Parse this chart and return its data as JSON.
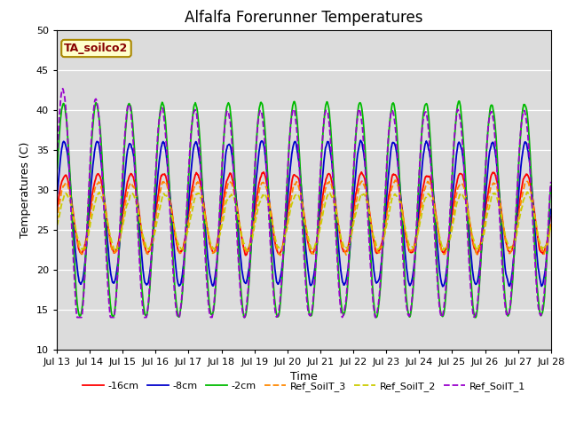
{
  "title": "Alfalfa Forerunner Temperatures",
  "xlabel": "Time",
  "ylabel": "Temperatures (C)",
  "ylim": [
    10,
    50
  ],
  "xlim": [
    0,
    360
  ],
  "background_color": "#dcdcdc",
  "legend_label": "TA_soilco2",
  "series": {
    "-16cm": {
      "color": "#ff0000",
      "linestyle": "-"
    },
    "-8cm": {
      "color": "#0000cc",
      "linestyle": "-"
    },
    "-2cm": {
      "color": "#00bb00",
      "linestyle": "-"
    },
    "Ref_SoilT_3": {
      "color": "#ff8800",
      "linestyle": "--"
    },
    "Ref_SoilT_2": {
      "color": "#cccc00",
      "linestyle": "--"
    },
    "Ref_SoilT_1": {
      "color": "#9900cc",
      "linestyle": "--"
    }
  },
  "xtick_positions": [
    0,
    24,
    48,
    72,
    96,
    120,
    144,
    168,
    192,
    216,
    240,
    264,
    288,
    312,
    336,
    360
  ],
  "xtick_labels": [
    "Jul 13",
    "Jul 14",
    "Jul 15",
    "Jul 16",
    "Jul 17",
    "Jul 18",
    "Jul 19",
    "Jul 20",
    "Jul 21",
    "Jul 22",
    "Jul 23",
    "Jul 24",
    "Jul 25",
    "Jul 26",
    "Jul 27",
    "Jul 28"
  ],
  "ytick_positions": [
    10,
    15,
    20,
    25,
    30,
    35,
    40,
    45,
    50
  ],
  "period": 24,
  "n_points": 1000
}
